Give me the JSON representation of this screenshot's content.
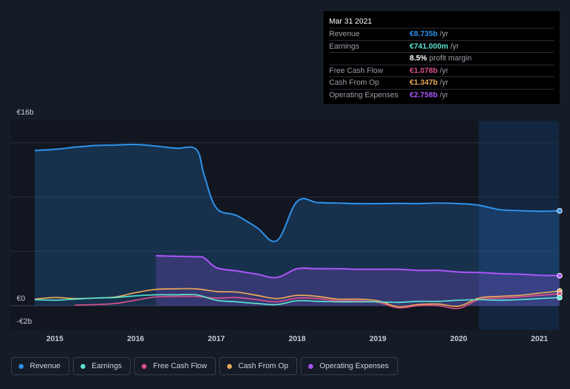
{
  "tooltip": {
    "date": "Mar 31 2021",
    "rows": [
      {
        "label": "Revenue",
        "value": "€8.735b",
        "unit": " /yr",
        "color": "#2d8fe6"
      },
      {
        "label": "Earnings",
        "value": "€741.000m",
        "unit": " /yr",
        "color": "#5ce0cf"
      },
      {
        "label": "",
        "value": "8.5%",
        "unit": " profit margin",
        "color": "#ffffff"
      },
      {
        "label": "Free Cash Flow",
        "value": "€1.078b",
        "unit": " /yr",
        "color": "#d9508a"
      },
      {
        "label": "Cash From Op",
        "value": "€1.347b",
        "unit": " /yr",
        "color": "#e8a85a"
      },
      {
        "label": "Operating Expenses",
        "value": "€2.758b",
        "unit": " /yr",
        "color": "#a855f7"
      }
    ]
  },
  "legend": [
    {
      "label": "Revenue",
      "color": "#2d8fe6"
    },
    {
      "label": "Earnings",
      "color": "#5ce0cf"
    },
    {
      "label": "Free Cash Flow",
      "color": "#d9508a"
    },
    {
      "label": "Cash From Op",
      "color": "#e8a85a"
    },
    {
      "label": "Operating Expenses",
      "color": "#a855f7"
    }
  ],
  "chart_data": {
    "type": "line",
    "y_tick_labels": [
      "€16b",
      "€0",
      "-€2b"
    ],
    "y_tick_values": [
      16,
      0,
      -2
    ],
    "ylim": [
      -2,
      16
    ],
    "x_tick_labels": [
      "2015",
      "2016",
      "2017",
      "2018",
      "2019",
      "2020",
      "2021"
    ],
    "x_tick_values": [
      2015,
      2016,
      2017,
      2018,
      2019,
      2020,
      2021
    ],
    "xlim": [
      2014.5,
      2021.25
    ],
    "gridlines": [
      5,
      10,
      15
    ],
    "highlight_from": 2020.25,
    "series": [
      {
        "name": "Revenue",
        "color": "#2d8fe6",
        "fill": true,
        "x": [
          2014.75,
          2015.0,
          2015.25,
          2015.5,
          2015.75,
          2016.0,
          2016.25,
          2016.5,
          2016.75,
          2016.85,
          2017.0,
          2017.25,
          2017.5,
          2017.75,
          2018.0,
          2018.25,
          2018.5,
          2018.75,
          2019.0,
          2019.25,
          2019.5,
          2019.75,
          2020.0,
          2020.25,
          2020.5,
          2020.75,
          2021.0,
          2021.25
        ],
        "y": [
          14.3,
          14.4,
          14.6,
          14.75,
          14.8,
          14.85,
          14.7,
          14.5,
          14.4,
          12.0,
          9.0,
          8.3,
          7.2,
          6.0,
          9.6,
          9.5,
          9.45,
          9.4,
          9.4,
          9.42,
          9.4,
          9.45,
          9.4,
          9.25,
          8.85,
          8.75,
          8.7,
          8.735
        ]
      },
      {
        "name": "Operating Expenses",
        "color": "#a855f7",
        "fill": true,
        "x": [
          2016.25,
          2016.5,
          2016.75,
          2016.85,
          2017.0,
          2017.25,
          2017.5,
          2017.75,
          2018.0,
          2018.25,
          2018.5,
          2018.75,
          2019.0,
          2019.25,
          2019.5,
          2019.75,
          2020.0,
          2020.25,
          2020.5,
          2020.75,
          2021.0,
          2021.25
        ],
        "y": [
          4.6,
          4.55,
          4.5,
          4.4,
          3.5,
          3.2,
          2.9,
          2.6,
          3.4,
          3.4,
          3.4,
          3.35,
          3.35,
          3.35,
          3.25,
          3.25,
          3.1,
          3.05,
          2.95,
          2.9,
          2.8,
          2.758
        ]
      },
      {
        "name": "Cash From Op",
        "color": "#e8a85a",
        "fill": false,
        "x": [
          2014.75,
          2015.0,
          2015.25,
          2015.5,
          2015.75,
          2016.0,
          2016.25,
          2016.5,
          2016.75,
          2017.0,
          2017.25,
          2017.5,
          2017.75,
          2018.0,
          2018.25,
          2018.5,
          2018.75,
          2019.0,
          2019.25,
          2019.5,
          2019.75,
          2020.0,
          2020.25,
          2020.5,
          2020.75,
          2021.0,
          2021.25
        ],
        "y": [
          0.6,
          0.75,
          0.65,
          0.7,
          0.8,
          1.2,
          1.5,
          1.55,
          1.55,
          1.3,
          1.25,
          0.95,
          0.65,
          0.95,
          0.85,
          0.6,
          0.6,
          0.45,
          -0.1,
          0.1,
          0.15,
          -0.05,
          0.7,
          0.85,
          0.95,
          1.15,
          1.347
        ]
      },
      {
        "name": "Free Cash Flow",
        "color": "#d9508a",
        "fill": false,
        "x": [
          2015.25,
          2015.5,
          2015.75,
          2016.0,
          2016.25,
          2016.5,
          2016.75,
          2017.0,
          2017.25,
          2017.5,
          2017.75,
          2018.0,
          2018.25,
          2018.5,
          2018.75,
          2019.0,
          2019.25,
          2019.5,
          2019.75,
          2020.0,
          2020.25,
          2020.5,
          2020.75,
          2021.0,
          2021.25
        ],
        "y": [
          0.05,
          0.1,
          0.2,
          0.5,
          0.8,
          0.85,
          0.85,
          0.7,
          0.75,
          0.55,
          0.35,
          0.7,
          0.65,
          0.45,
          0.45,
          0.3,
          -0.2,
          0.0,
          0.0,
          -0.25,
          0.55,
          0.7,
          0.8,
          0.95,
          1.078
        ]
      },
      {
        "name": "Earnings",
        "color": "#5ce0cf",
        "fill": false,
        "x": [
          2014.75,
          2015.0,
          2015.25,
          2015.5,
          2015.75,
          2016.0,
          2016.25,
          2016.5,
          2016.75,
          2017.0,
          2017.25,
          2017.5,
          2017.75,
          2018.0,
          2018.25,
          2018.5,
          2018.75,
          2019.0,
          2019.25,
          2019.5,
          2019.75,
          2020.0,
          2020.25,
          2020.5,
          2020.75,
          2021.0,
          2021.25
        ],
        "y": [
          0.55,
          0.5,
          0.6,
          0.7,
          0.75,
          0.9,
          1.0,
          1.0,
          1.0,
          0.5,
          0.35,
          0.2,
          0.1,
          0.45,
          0.4,
          0.35,
          0.35,
          0.35,
          0.3,
          0.4,
          0.4,
          0.5,
          0.55,
          0.5,
          0.55,
          0.65,
          0.741
        ]
      }
    ]
  }
}
